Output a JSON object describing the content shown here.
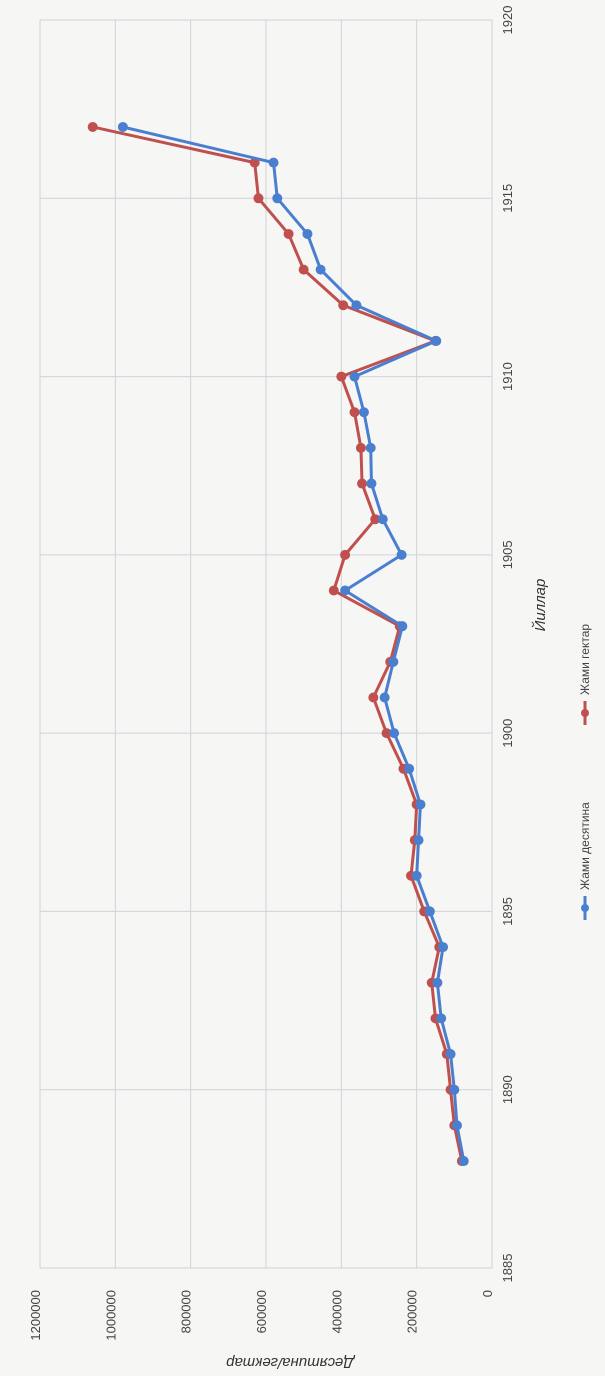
{
  "chart_data": {
    "type": "line",
    "xlabel": "Йиллар",
    "ylabel": "Десятина/гектар",
    "xlim": [
      1885,
      1920
    ],
    "ylim": [
      0,
      1200000
    ],
    "xticks": [
      1885,
      1890,
      1895,
      1900,
      1905,
      1910,
      1915,
      1920
    ],
    "yticks": [
      0,
      200000,
      400000,
      600000,
      800000,
      1000000,
      1200000
    ],
    "grid": true,
    "legend_position": "bottom",
    "series": [
      {
        "name": "Жами десятина",
        "color": "#4a7fd0",
        "x": [
          1888,
          1889,
          1890,
          1891,
          1892,
          1893,
          1894,
          1895,
          1896,
          1897,
          1898,
          1899,
          1900,
          1901,
          1902,
          1903,
          1904,
          1905,
          1906,
          1907,
          1908,
          1909,
          1910,
          1911,
          1912,
          1913,
          1914,
          1915,
          1916,
          1917
        ],
        "y": [
          75000,
          93000,
          100000,
          110000,
          135000,
          145000,
          130000,
          165000,
          200000,
          195000,
          190000,
          220000,
          260000,
          285000,
          262000,
          238000,
          390000,
          240000,
          290000,
          320000,
          322000,
          340000,
          365000,
          148000,
          360000,
          455000,
          490000,
          570000,
          580000,
          980000
        ]
      },
      {
        "name": "Жами гектар",
        "color": "#c0504d",
        "x": [
          1888,
          1889,
          1890,
          1891,
          1892,
          1893,
          1894,
          1895,
          1896,
          1897,
          1898,
          1899,
          1900,
          1901,
          1902,
          1903,
          1904,
          1905,
          1906,
          1907,
          1908,
          1909,
          1910,
          1911,
          1912,
          1913,
          1914,
          1915,
          1916,
          1917
        ],
        "y": [
          80000,
          100000,
          110000,
          120000,
          150000,
          160000,
          140000,
          180000,
          215000,
          205000,
          200000,
          235000,
          280000,
          315000,
          270000,
          245000,
          420000,
          390000,
          310000,
          345000,
          348000,
          365000,
          400000,
          150000,
          395000,
          500000,
          540000,
          620000,
          630000,
          1060000
        ]
      }
    ]
  }
}
